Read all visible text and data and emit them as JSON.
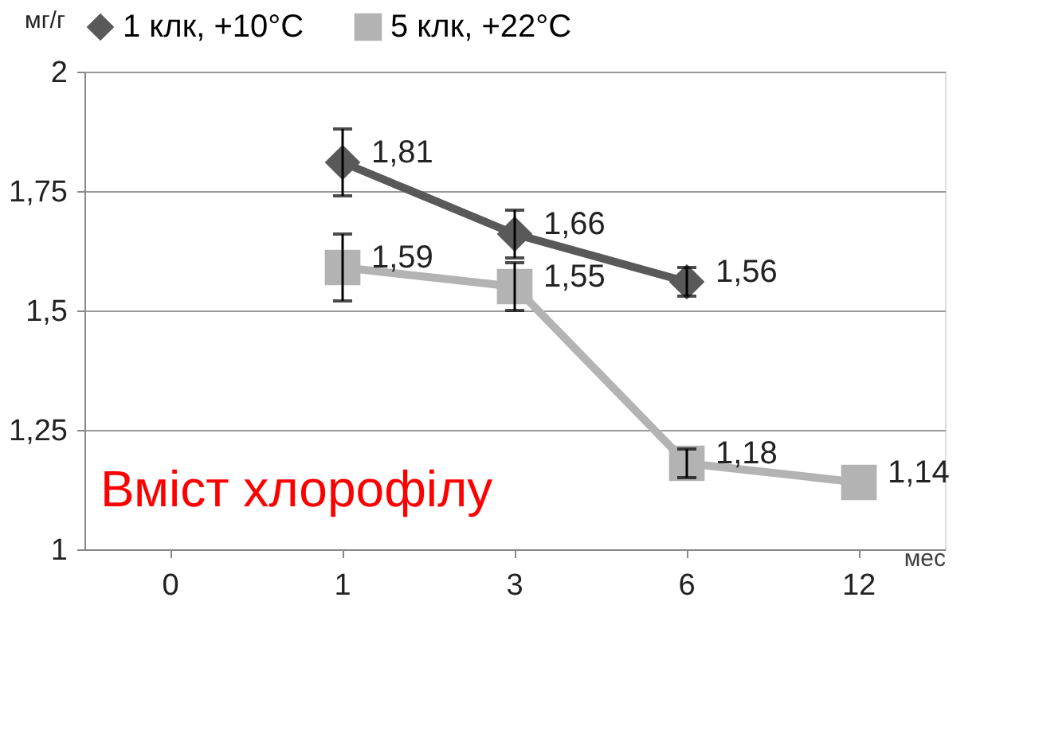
{
  "chart_data": {
    "type": "line",
    "categories": [
      "0",
      "1",
      "3",
      "6",
      "12"
    ],
    "xlabel": "мес",
    "ylabel": "мг/г",
    "ylim": [
      1,
      2
    ],
    "yticks": [
      1,
      {
        "value": 1.25,
        "label": "1,25"
      },
      {
        "value": 1.5,
        "label": "1,5"
      },
      {
        "value": 1.75,
        "label": "1,75"
      },
      2
    ],
    "grid": "y",
    "legend": "top",
    "line_style": "solid",
    "series": [
      {
        "name": "1 клк, +10°C",
        "color": "#595959",
        "marker": "diamond",
        "values": [
          null,
          1.81,
          1.66,
          1.56,
          null
        ],
        "errors": [
          null,
          0.07,
          0.05,
          0.03,
          null
        ],
        "value_labels": [
          null,
          "1,81",
          "1,66",
          "1,56",
          null
        ]
      },
      {
        "name": "5 клк, +22°C",
        "color": "#b3b3b3",
        "marker": "square",
        "values": [
          null,
          1.59,
          1.55,
          1.18,
          1.14
        ],
        "errors": [
          null,
          0.07,
          0.05,
          0.03,
          null
        ],
        "value_labels": [
          null,
          "1,59",
          "1,55",
          "1,18",
          "1,14"
        ]
      }
    ],
    "annotations": [
      "Вміст хлорофілу"
    ]
  }
}
